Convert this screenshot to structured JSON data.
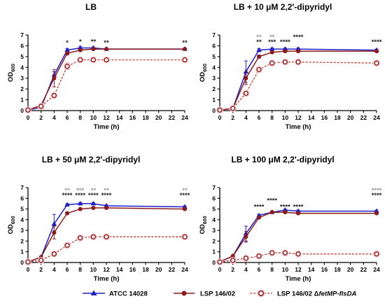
{
  "chart_data": [
    {
      "type": "line",
      "title": "LB",
      "xlabel": "Time (h)",
      "ylabel": "OD600",
      "xlim": [
        0,
        24
      ],
      "ylim": [
        0,
        7
      ],
      "x": [
        0,
        2,
        4,
        6,
        8,
        10,
        12,
        24
      ],
      "series": [
        {
          "name": "ATCC 14028",
          "color": "#1f1fc8",
          "values": [
            0.05,
            0.3,
            3.3,
            5.6,
            5.8,
            5.8,
            5.7,
            5.7
          ],
          "error": [
            0.02,
            0.05,
            0.3,
            0.15,
            0.15,
            0.1,
            0.1,
            0.05
          ]
        },
        {
          "name": "LSP 146/02",
          "color": "#8b1a1a",
          "values": [
            0.05,
            0.5,
            3.0,
            5.3,
            5.6,
            5.7,
            5.7,
            5.7
          ],
          "error": [
            0.02,
            0.05,
            0.8,
            0.15,
            0.1,
            0.1,
            0.1,
            0.05
          ]
        },
        {
          "name": "LSP 146/02 ΔfetMP-flsDA",
          "color": "#c0392b",
          "dashed": true,
          "values": [
            0.05,
            0.4,
            1.4,
            4.1,
            4.7,
            4.7,
            4.7,
            4.7
          ],
          "error": [
            0.02,
            0.05,
            0.2,
            0.3,
            0.2,
            0.1,
            0.1,
            0.15
          ]
        }
      ],
      "annotations": [
        {
          "x": 6,
          "y": 6.1,
          "rows": [
            {
              "text": "*",
              "color": "#222222"
            }
          ]
        },
        {
          "x": 8,
          "y": 6.2,
          "rows": [
            {
              "text": "*",
              "color": "#222222"
            }
          ]
        },
        {
          "x": 10,
          "y": 6.2,
          "rows": [
            {
              "text": "**",
              "color": "#222222"
            }
          ]
        },
        {
          "x": 12,
          "y": 6.1,
          "rows": [
            {
              "text": "**",
              "color": "#222222"
            }
          ]
        },
        {
          "x": 24,
          "y": 6.1,
          "rows": [
            {
              "text": "**",
              "color": "#222222"
            }
          ]
        }
      ]
    },
    {
      "type": "line",
      "title": "LB + 10 μM 2,2′-dipyridyl",
      "xlabel": "Time (h)",
      "ylabel": "OD600",
      "xlim": [
        0,
        24
      ],
      "ylim": [
        0,
        7
      ],
      "x": [
        0,
        2,
        4,
        6,
        8,
        10,
        12,
        24
      ],
      "series": [
        {
          "name": "ATCC 14028",
          "color": "#1f1fc8",
          "values": [
            0.05,
            0.2,
            3.6,
            5.6,
            5.7,
            5.7,
            5.7,
            5.6
          ],
          "error": [
            0.02,
            0.05,
            1.0,
            0.15,
            0.1,
            0.1,
            0.1,
            0.1
          ]
        },
        {
          "name": "LSP 146/02",
          "color": "#8b1a1a",
          "values": [
            0.05,
            0.2,
            3.0,
            5.0,
            5.4,
            5.5,
            5.5,
            5.5
          ],
          "error": [
            0.02,
            0.05,
            0.6,
            0.15,
            0.1,
            0.1,
            0.1,
            0.1
          ]
        },
        {
          "name": "LSP 146/02 ΔfetMP-flsDA",
          "color": "#c0392b",
          "dashed": true,
          "values": [
            0.05,
            0.2,
            1.6,
            3.8,
            4.4,
            4.5,
            4.5,
            4.4
          ],
          "error": [
            0.02,
            0.05,
            0.2,
            0.2,
            0.15,
            0.1,
            0.1,
            0.1
          ]
        }
      ],
      "annotations": [
        {
          "x": 6,
          "y": 6.15,
          "rows": [
            {
              "text": "**",
              "color": "#999999"
            },
            {
              "text": "**",
              "color": "#222222"
            }
          ]
        },
        {
          "x": 8,
          "y": 6.15,
          "rows": [
            {
              "text": "**",
              "color": "#999999"
            },
            {
              "text": "***",
              "color": "#222222"
            }
          ]
        },
        {
          "x": 10,
          "y": 6.15,
          "rows": [
            {
              "text": "****",
              "color": "#222222"
            }
          ]
        },
        {
          "x": 12,
          "y": 6.6,
          "rows": [
            {
              "text": "****",
              "color": "#222222"
            }
          ]
        },
        {
          "x": 24,
          "y": 6.15,
          "rows": [
            {
              "text": "****",
              "color": "#222222"
            }
          ]
        }
      ]
    },
    {
      "type": "line",
      "title": "LB + 50 μM 2,2′-dipyridyl",
      "xlabel": "Time (h)",
      "ylabel": "OD600",
      "xlim": [
        0,
        24
      ],
      "ylim": [
        0,
        7
      ],
      "x": [
        0,
        2,
        4,
        6,
        8,
        10,
        12,
        24
      ],
      "series": [
        {
          "name": "ATCC 14028",
          "color": "#1f1fc8",
          "values": [
            0.05,
            0.5,
            3.6,
            5.4,
            5.5,
            5.5,
            5.3,
            5.2
          ],
          "error": [
            0.02,
            0.1,
            0.9,
            0.1,
            0.1,
            0.1,
            0.1,
            0.1
          ]
        },
        {
          "name": "LSP 146/02",
          "color": "#8b1a1a",
          "values": [
            0.05,
            0.5,
            2.8,
            4.6,
            5.0,
            5.1,
            5.1,
            5.0
          ],
          "error": [
            0.02,
            0.1,
            0.6,
            0.1,
            0.1,
            0.1,
            0.1,
            0.1
          ]
        },
        {
          "name": "LSP 146/02 ΔfetMP-flsDA",
          "color": "#c0392b",
          "dashed": true,
          "values": [
            0.05,
            0.2,
            0.8,
            1.6,
            2.3,
            2.4,
            2.4,
            2.4
          ],
          "error": [
            0.02,
            0.05,
            0.1,
            0.1,
            0.1,
            0.1,
            0.1,
            0.1
          ]
        }
      ],
      "annotations": [
        {
          "x": 6,
          "y": 6.1,
          "rows": [
            {
              "text": "**",
              "color": "#999999"
            },
            {
              "text": "****",
              "color": "#222222"
            }
          ]
        },
        {
          "x": 8,
          "y": 6.1,
          "rows": [
            {
              "text": "***",
              "color": "#999999"
            },
            {
              "text": "****",
              "color": "#222222"
            }
          ]
        },
        {
          "x": 10,
          "y": 6.1,
          "rows": [
            {
              "text": "**",
              "color": "#999999"
            },
            {
              "text": "****",
              "color": "#222222"
            }
          ]
        },
        {
          "x": 12,
          "y": 6.1,
          "rows": [
            {
              "text": "**",
              "color": "#999999"
            },
            {
              "text": "****",
              "color": "#222222"
            }
          ]
        },
        {
          "x": 24,
          "y": 6.1,
          "rows": [
            {
              "text": "**",
              "color": "#999999"
            },
            {
              "text": "****",
              "color": "#222222"
            }
          ]
        }
      ]
    },
    {
      "type": "line",
      "title": "LB + 100 μM 2,2′-dipyridyl",
      "xlabel": "Time (h)",
      "ylabel": "OD600",
      "xlim": [
        0,
        24
      ],
      "ylim": [
        0,
        7
      ],
      "x": [
        0,
        2,
        4,
        6,
        8,
        10,
        12,
        24
      ],
      "series": [
        {
          "name": "ATCC 14028",
          "color": "#1f1fc8",
          "values": [
            0.05,
            0.6,
            2.7,
            4.4,
            4.7,
            4.9,
            4.8,
            4.8
          ],
          "error": [
            0.02,
            0.1,
            0.7,
            0.1,
            0.1,
            0.1,
            0.1,
            0.1
          ]
        },
        {
          "name": "LSP 146/02",
          "color": "#8b1a1a",
          "values": [
            0.05,
            0.6,
            2.4,
            4.2,
            4.7,
            4.7,
            4.6,
            4.6
          ],
          "error": [
            0.02,
            0.1,
            0.5,
            0.1,
            0.1,
            0.1,
            0.1,
            0.1
          ]
        },
        {
          "name": "LSP 146/02 ΔfetMP-flsDA",
          "color": "#c0392b",
          "dashed": true,
          "values": [
            0.05,
            0.2,
            0.4,
            0.6,
            0.9,
            0.9,
            0.8,
            0.8
          ],
          "error": [
            0.02,
            0.05,
            0.1,
            0.1,
            0.15,
            0.1,
            0.1,
            0.1
          ]
        }
      ],
      "annotations": [
        {
          "x": 6,
          "y": 5.0,
          "rows": [
            {
              "text": "****",
              "color": "#222222"
            }
          ]
        },
        {
          "x": 8,
          "y": 5.6,
          "rows": [
            {
              "text": "****",
              "color": "#222222"
            }
          ]
        },
        {
          "x": 10,
          "y": 5.0,
          "rows": [
            {
              "text": "****",
              "color": "#222222"
            }
          ]
        },
        {
          "x": 12,
          "y": 5.0,
          "rows": [
            {
              "text": "****",
              "color": "#222222"
            }
          ]
        },
        {
          "x": 24,
          "y": 6.1,
          "rows": [
            {
              "text": "****",
              "color": "#999999"
            },
            {
              "text": "****",
              "color": "#222222"
            }
          ]
        }
      ]
    }
  ],
  "legend": {
    "placement": "bottom",
    "items": [
      {
        "label": "ATCC 14028",
        "color": "#1f1fc8",
        "marker": "triangle",
        "dashed": false
      },
      {
        "label": "LSP 146/02",
        "color": "#8b1a1a",
        "marker": "circle",
        "dashed": false
      },
      {
        "label_prefix": "LSP 146/02 Δ",
        "label_italic": "fetMP-flsDA",
        "color": "#c0392b",
        "marker": "open-circle",
        "dashed": true
      }
    ]
  }
}
